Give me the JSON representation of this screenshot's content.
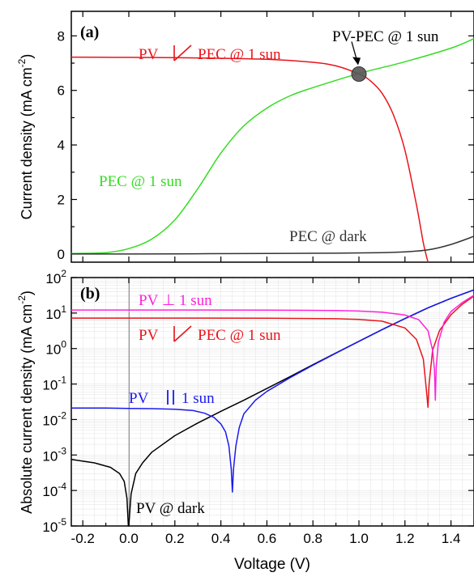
{
  "chart_data": [
    {
      "panel": "(a)",
      "type": "line",
      "xlabel": "",
      "ylabel": "Current density (mA cm",
      "ylabel_sup": "-2",
      "ylabel_close": ")",
      "xlim": [
        -0.25,
        1.5
      ],
      "ylim": [
        -0.3,
        8.9
      ],
      "y_ticks": [
        0,
        2,
        4,
        6,
        8
      ],
      "y_tick_labels": [
        "0",
        "2",
        "4",
        "6",
        "8"
      ],
      "grid": false,
      "series": [
        {
          "name": "PV ⁄ PEC @ 1 sun",
          "color": "#e8141a",
          "x": [
            -0.25,
            0.0,
            0.3,
            0.6,
            0.8,
            0.9,
            1.0,
            1.05,
            1.1,
            1.15,
            1.2,
            1.25,
            1.28,
            1.3
          ],
          "y": [
            7.22,
            7.21,
            7.19,
            7.14,
            7.03,
            6.9,
            6.6,
            6.35,
            5.9,
            5.1,
            3.8,
            1.8,
            0.4,
            -0.3
          ]
        },
        {
          "name": "PEC @ 1 sun",
          "color": "#33dd22",
          "x": [
            -0.25,
            -0.1,
            0.0,
            0.1,
            0.2,
            0.3,
            0.4,
            0.5,
            0.6,
            0.7,
            0.8,
            1.0,
            1.2,
            1.4,
            1.5
          ],
          "y": [
            0.02,
            0.05,
            0.2,
            0.55,
            1.25,
            2.4,
            3.7,
            4.7,
            5.35,
            5.8,
            6.1,
            6.62,
            7.05,
            7.55,
            7.9
          ]
        },
        {
          "name": "PEC @ dark",
          "color": "#333333",
          "x": [
            -0.25,
            0.0,
            0.3,
            0.6,
            0.9,
            1.1,
            1.2,
            1.3,
            1.4,
            1.5
          ],
          "y": [
            0.0,
            0.0,
            0.01,
            0.02,
            0.03,
            0.05,
            0.08,
            0.15,
            0.35,
            0.65
          ]
        }
      ],
      "annotations": [
        {
          "text": "PV-PEC @ 1 sun",
          "x": 1.0,
          "y": 6.6
        }
      ],
      "labels": [
        "PV",
        "PEC @ 1 sun",
        "PEC @ 1 sun",
        "PEC @ dark"
      ]
    },
    {
      "panel": "(b)",
      "type": "line",
      "xlabel": "Voltage (V)",
      "ylabel": "Absolute current density (mA cm",
      "ylabel_sup": "-2",
      "ylabel_close": ")",
      "xlim": [
        -0.25,
        1.5
      ],
      "ylim_log10": [
        -5,
        2
      ],
      "y_scale": "log",
      "x_ticks": [
        -0.2,
        0.0,
        0.2,
        0.4,
        0.6,
        0.8,
        1.0,
        1.2,
        1.4
      ],
      "x_tick_labels": [
        "-0.2",
        "0.0",
        "0.2",
        "0.4",
        "0.6",
        "0.8",
        "1.0",
        "1.2",
        "1.4"
      ],
      "y_tick_exponents": [
        "-5",
        "-4",
        "-3",
        "-2",
        "-1",
        "0",
        "1",
        "2"
      ],
      "y_tick_base": "10",
      "grid": true,
      "series": [
        {
          "name": "PV ⊥ 1 sun",
          "color": "#ff22dd"
        },
        {
          "name": "PV ⁄ PEC @ 1 sun",
          "color": "#e8141a"
        },
        {
          "name": "PV || 1 sun",
          "color": "#1a1aee"
        },
        {
          "name": "PV @ dark",
          "color": "#000000"
        }
      ],
      "labels": [
        "PV",
        "1 sun",
        "PV",
        "PEC @ 1 sun",
        "PV",
        "1 sun",
        "PV @ dark"
      ]
    }
  ]
}
